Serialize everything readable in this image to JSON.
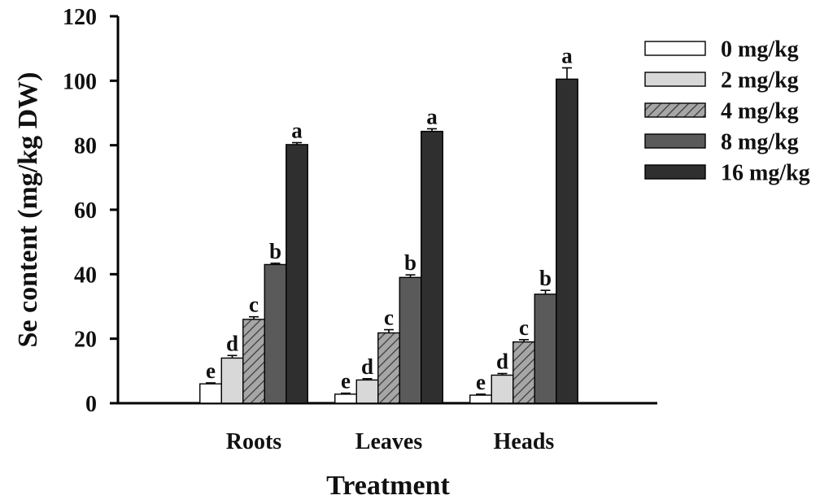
{
  "chart_data": {
    "type": "bar",
    "xlabel": "Treatment",
    "ylabel": "Se content (mg/kg DW)",
    "ylim": [
      0,
      120
    ],
    "yticks": [
      0,
      20,
      40,
      60,
      80,
      100,
      120
    ],
    "grid": false,
    "legend_position": "top-right",
    "categories": [
      "Roots",
      "Leaves",
      "Heads"
    ],
    "series": [
      {
        "name": "0 mg/kg",
        "color": "#ffffff",
        "pattern": "solid",
        "values": [
          6,
          2.8,
          2.5
        ],
        "errors": [
          0.3,
          0.3,
          0.3
        ],
        "labels": [
          "e",
          "e",
          "e"
        ]
      },
      {
        "name": "2 mg/kg",
        "color": "#d8d8d8",
        "pattern": "solid",
        "values": [
          14,
          7.2,
          8.7
        ],
        "errors": [
          0.8,
          0.4,
          0.5
        ],
        "labels": [
          "d",
          "d",
          "d"
        ]
      },
      {
        "name": "4 mg/kg",
        "color": "#a6a6a6",
        "pattern": "hatch",
        "values": [
          26,
          21.8,
          19
        ],
        "errors": [
          0.8,
          1.0,
          0.7
        ],
        "labels": [
          "c",
          "c",
          "c"
        ]
      },
      {
        "name": "8 mg/kg",
        "color": "#5a5a5a",
        "pattern": "solid",
        "values": [
          43,
          39,
          33.8
        ],
        "errors": [
          0.4,
          0.8,
          1.2
        ],
        "labels": [
          "b",
          "b",
          "b"
        ]
      },
      {
        "name": "16 mg/kg",
        "color": "#2f2f2f",
        "pattern": "solid",
        "values": [
          80.2,
          84.3,
          100.5
        ],
        "errors": [
          0.6,
          0.8,
          3.5
        ],
        "labels": [
          "a",
          "a",
          "a"
        ]
      }
    ]
  }
}
